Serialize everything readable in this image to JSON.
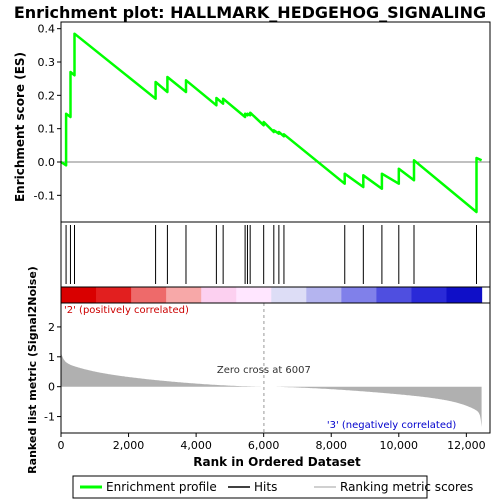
{
  "chart_data": {
    "type": "line",
    "title": "Enrichment plot: HALLMARK_HEDGEHOG_SIGNALING",
    "xlabel": "Rank in Ordered Dataset",
    "es_ylabel": "Enrichment score (ES)",
    "metric_ylabel": "Ranked list metric (Signal2Noise)",
    "xlim": [
      0,
      12700
    ],
    "es_ylim": [
      -0.18,
      0.42
    ],
    "metric_ylim": [
      -1.55,
      2.8
    ],
    "x_ticks": [
      0,
      2000,
      4000,
      6000,
      8000,
      10000,
      12000
    ],
    "x_tick_labels": [
      "0",
      "2,000",
      "4,000",
      "6,000",
      "8,000",
      "10,000",
      "12,000"
    ],
    "es_ticks": [
      -0.1,
      0.0,
      0.1,
      0.2,
      0.3,
      0.4
    ],
    "es_tick_labels": [
      "-0.1",
      "0.0",
      "0.1",
      "0.2",
      "0.3",
      "0.4"
    ],
    "metric_ticks": [
      -1,
      0,
      1,
      2
    ],
    "metric_tick_labels": [
      "-1",
      "0",
      "1",
      "2"
    ],
    "n_genes": 12450,
    "zero_cross": 6007,
    "zero_cross_label": "Zero cross at 6007",
    "positive_label": "'2' (positively correlated)",
    "negative_label": "'3' (negatively correlated)",
    "hits": [
      150,
      280,
      400,
      2800,
      3150,
      3700,
      4600,
      4800,
      5450,
      5520,
      5600,
      6000,
      6300,
      6450,
      6600,
      8400,
      8950,
      9500,
      10000,
      10450,
      12300
    ],
    "es_profile": {
      "x": [
        0,
        150,
        150,
        280,
        280,
        400,
        400,
        2800,
        2800,
        3150,
        3150,
        3700,
        3700,
        4600,
        4600,
        4800,
        4800,
        5450,
        5450,
        5520,
        5520,
        5600,
        5600,
        6000,
        6000,
        6300,
        6300,
        6450,
        6450,
        6600,
        6600,
        8400,
        8400,
        8950,
        8950,
        9500,
        9500,
        10000,
        10000,
        10450,
        10450,
        12300,
        12300,
        12450
      ],
      "y": [
        0.0,
        -0.01,
        0.145,
        0.135,
        0.27,
        0.26,
        0.385,
        0.19,
        0.24,
        0.21,
        0.255,
        0.21,
        0.245,
        0.17,
        0.192,
        0.175,
        0.19,
        0.135,
        0.145,
        0.14,
        0.145,
        0.14,
        0.148,
        0.11,
        0.12,
        0.09,
        0.095,
        0.085,
        0.09,
        0.077,
        0.083,
        -0.065,
        -0.035,
        -0.075,
        -0.04,
        -0.08,
        -0.035,
        -0.065,
        -0.02,
        -0.055,
        0.005,
        -0.15,
        0.012,
        0.005
      ]
    },
    "heatmap_colors": [
      "#d90000",
      "#e21f1f",
      "#ee6a6a",
      "#f7a8a8",
      "#fcd0f0",
      "#ffe6ff",
      "#ddddf6",
      "#b4b4ef",
      "#8080ea",
      "#4f4fe0",
      "#2a2ad8",
      "#0f0fc8"
    ],
    "legend": [
      {
        "label": "Enrichment profile",
        "color": "#00ff00",
        "kind": "line-thick"
      },
      {
        "label": "Hits",
        "color": "#000000",
        "kind": "line"
      },
      {
        "label": "Ranking metric scores",
        "color": "#c0c0c0",
        "kind": "line"
      }
    ],
    "colors": {
      "profile": "#00ff00",
      "hits": "#000000",
      "metric_fill": "#b0b0b0",
      "positive_text": "#cc0000",
      "negative_text": "#0000cc",
      "zero_line": "#999999"
    }
  }
}
